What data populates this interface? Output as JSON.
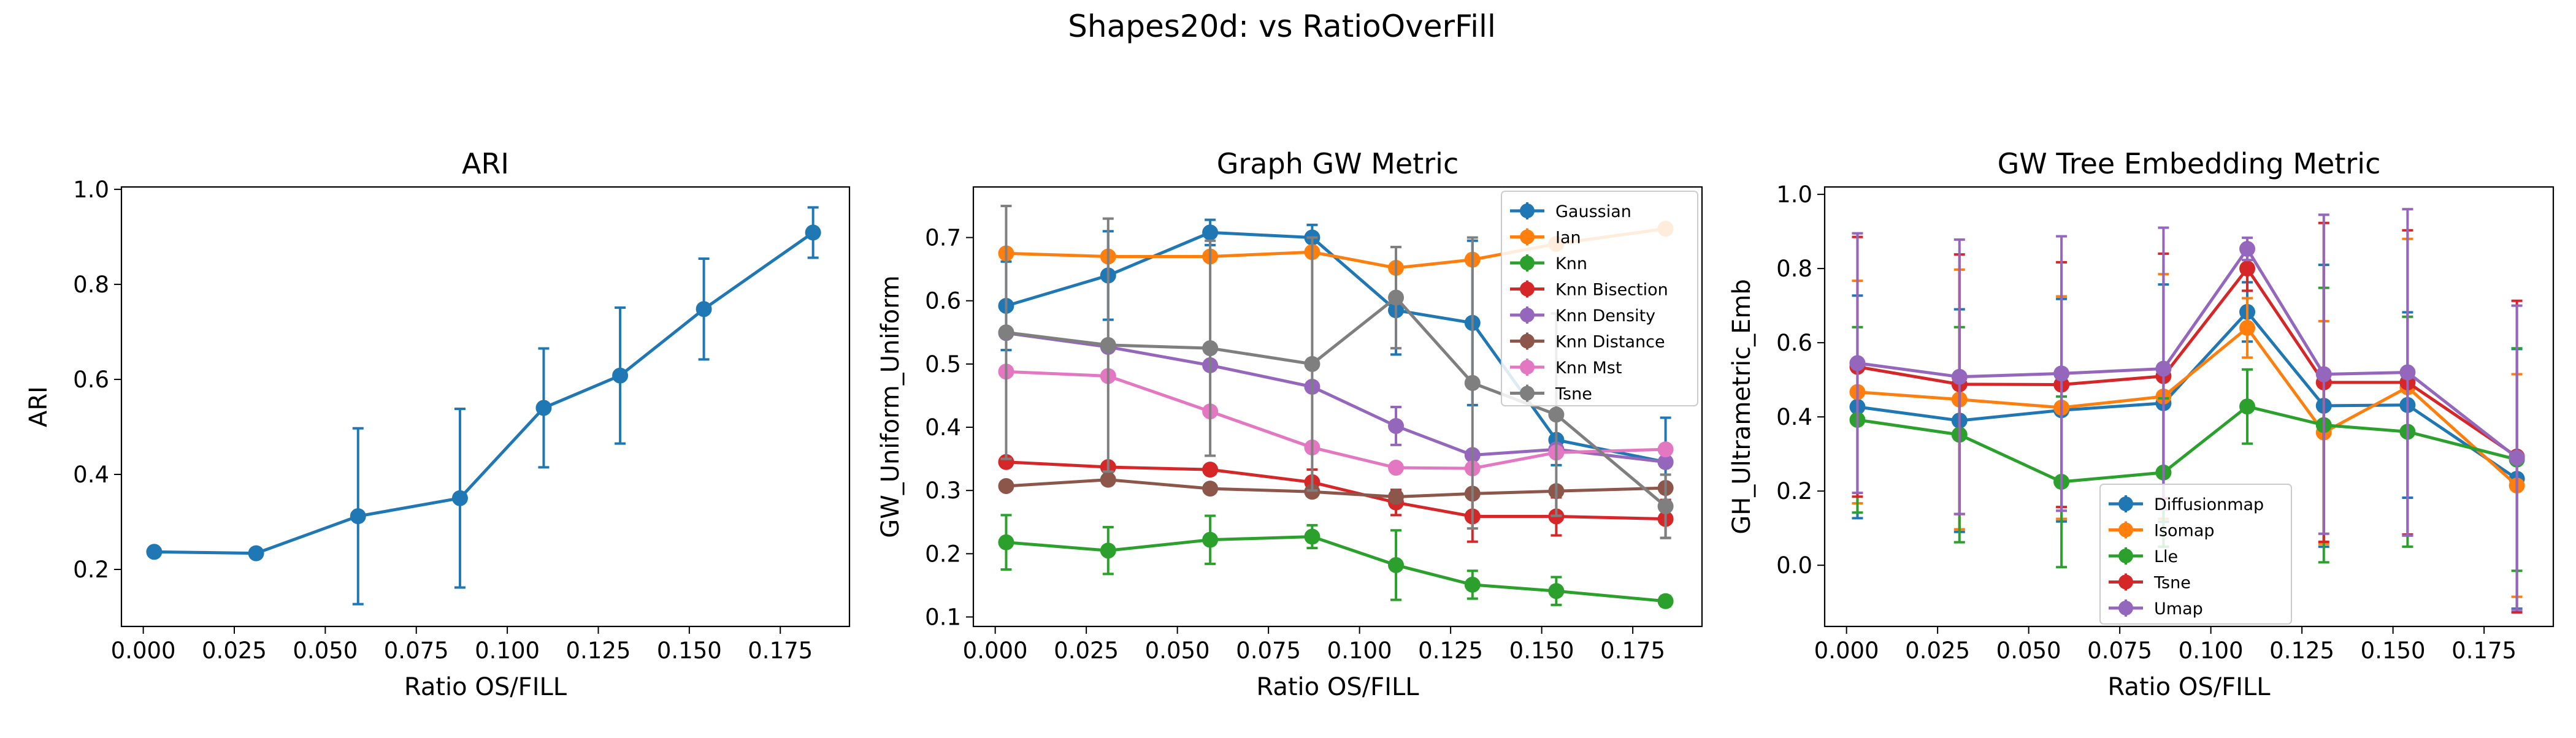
{
  "figure": {
    "suptitle": "Shapes20d: vs RatioOverFill"
  },
  "colors": {
    "tab_blue": "#1f77b4",
    "tab_orange": "#ff7f0e",
    "tab_green": "#2ca02c",
    "tab_red": "#d62728",
    "tab_purple": "#9467bd",
    "tab_brown": "#8c564b",
    "tab_pink": "#e377c2",
    "tab_gray": "#7f7f7f"
  },
  "chart_data": [
    {
      "type": "line",
      "title": "ARI",
      "xlabel": "Ratio OS/FILL",
      "ylabel": "ARI",
      "xlim": [
        -0.006,
        0.194
      ],
      "ylim": [
        0.08,
        1.005
      ],
      "xticks": [
        0.0,
        0.025,
        0.05,
        0.075,
        0.1,
        0.125,
        0.15,
        0.175
      ],
      "xtick_labels": [
        "0.000",
        "0.025",
        "0.050",
        "0.075",
        "0.100",
        "0.125",
        "0.150",
        "0.175"
      ],
      "yticks": [
        0.2,
        0.4,
        0.6,
        0.8,
        1.0
      ],
      "ytick_labels": [
        "0.2",
        "0.4",
        "0.6",
        "0.8",
        "1.0"
      ],
      "x": [
        0.003,
        0.031,
        0.059,
        0.087,
        0.11,
        0.131,
        0.154,
        0.184
      ],
      "series": [
        {
          "color": "#1f77b4",
          "values": [
            0.237,
            0.234,
            0.312,
            0.35,
            0.54,
            0.608,
            0.748,
            0.909
          ],
          "errors": [
            0.0,
            0.0,
            0.185,
            0.188,
            0.125,
            0.143,
            0.106,
            0.053
          ]
        }
      ]
    },
    {
      "type": "line",
      "title": "Graph GW Metric",
      "xlabel": "Ratio OS/FILL",
      "ylabel": "GW_Uniform_Uniform",
      "xlim": [
        -0.006,
        0.194
      ],
      "ylim": [
        0.085,
        0.78
      ],
      "xticks": [
        0.0,
        0.025,
        0.05,
        0.075,
        0.1,
        0.125,
        0.15,
        0.175
      ],
      "xtick_labels": [
        "0.000",
        "0.025",
        "0.050",
        "0.075",
        "0.100",
        "0.125",
        "0.150",
        "0.175"
      ],
      "yticks": [
        0.1,
        0.2,
        0.3,
        0.4,
        0.5,
        0.6,
        0.7
      ],
      "ytick_labels": [
        "0.1",
        "0.2",
        "0.3",
        "0.4",
        "0.5",
        "0.6",
        "0.7"
      ],
      "legend": "top-right",
      "x": [
        0.003,
        0.031,
        0.059,
        0.087,
        0.11,
        0.131,
        0.154,
        0.184
      ],
      "series": [
        {
          "name": "Gaussian",
          "color": "#1f77b4",
          "values": [
            0.592,
            0.64,
            0.708,
            0.7,
            0.585,
            0.565,
            0.38,
            0.345
          ],
          "errors": [
            0.07,
            0.07,
            0.02,
            0.02,
            0.07,
            0.13,
            0.04,
            0.07
          ]
        },
        {
          "name": "Ian",
          "color": "#ff7f0e",
          "values": [
            0.675,
            0.67,
            0.67,
            0.677,
            0.652,
            0.665,
            0.69,
            0.714
          ],
          "errors": [
            0.0,
            0.0,
            0.0,
            0.0,
            0.0,
            0.0,
            0.0,
            0.0
          ]
        },
        {
          "name": "Knn",
          "color": "#2ca02c",
          "values": [
            0.218,
            0.205,
            0.222,
            0.227,
            0.182,
            0.151,
            0.141,
            0.125
          ],
          "errors": [
            0.043,
            0.037,
            0.038,
            0.018,
            0.055,
            0.022,
            0.022,
            0.008
          ]
        },
        {
          "name": "Knn Bisection",
          "color": "#d62728",
          "values": [
            0.345,
            0.337,
            0.333,
            0.313,
            0.281,
            0.259,
            0.259,
            0.255
          ],
          "errors": [
            0.0,
            0.0,
            0.0,
            0.02,
            0.02,
            0.04,
            0.03,
            0.03
          ]
        },
        {
          "name": "Knn Density",
          "color": "#9467bd",
          "values": [
            0.549,
            0.527,
            0.498,
            0.464,
            0.402,
            0.356,
            0.365,
            0.345
          ],
          "errors": [
            0.0,
            0.0,
            0.0,
            0.0,
            0.03,
            0.0,
            0.0,
            0.0
          ]
        },
        {
          "name": "Knn Distance",
          "color": "#8c564b",
          "values": [
            0.307,
            0.317,
            0.303,
            0.298,
            0.29,
            0.295,
            0.299,
            0.304
          ],
          "errors": [
            0.0,
            0.0,
            0.0,
            0.0,
            0.0,
            0.0,
            0.0,
            0.0
          ]
        },
        {
          "name": "Knn Mst",
          "color": "#e377c2",
          "values": [
            0.488,
            0.481,
            0.425,
            0.368,
            0.336,
            0.335,
            0.36,
            0.365
          ],
          "errors": [
            0.0,
            0.0,
            0.0,
            0.0,
            0.0,
            0.0,
            0.0,
            0.0
          ]
        },
        {
          "name": "Tsne",
          "color": "#7f7f7f",
          "values": [
            0.55,
            0.53,
            0.525,
            0.5,
            0.605,
            0.47,
            0.42,
            0.275
          ],
          "errors": [
            0.2,
            0.2,
            0.17,
            0.2,
            0.08,
            0.23,
            0.16,
            0.05
          ]
        }
      ]
    },
    {
      "type": "line",
      "title": "GW Tree Embedding Metric",
      "xlabel": "Ratio OS/FILL",
      "ylabel": "GH_Ultrametric_Emb",
      "xlim": [
        -0.006,
        0.194
      ],
      "ylim": [
        -0.165,
        1.02
      ],
      "xticks": [
        0.0,
        0.025,
        0.05,
        0.075,
        0.1,
        0.125,
        0.15,
        0.175
      ],
      "xtick_labels": [
        "0.000",
        "0.025",
        "0.050",
        "0.075",
        "0.100",
        "0.125",
        "0.150",
        "0.175"
      ],
      "yticks": [
        0.0,
        0.2,
        0.4,
        0.6,
        0.8,
        1.0
      ],
      "ytick_labels": [
        "0.0",
        "0.2",
        "0.4",
        "0.6",
        "0.8",
        "1.0"
      ],
      "legend": "lower-center",
      "x": [
        0.003,
        0.031,
        0.059,
        0.087,
        0.11,
        0.131,
        0.154,
        0.184
      ],
      "series": [
        {
          "name": "Diffusionmap",
          "color": "#1f77b4",
          "values": [
            0.427,
            0.39,
            0.418,
            0.437,
            0.683,
            0.43,
            0.432,
            0.233
          ],
          "errors": [
            0.3,
            0.3,
            0.3,
            0.32,
            0.08,
            0.38,
            0.25,
            0.35
          ]
        },
        {
          "name": "Isomap",
          "color": "#ff7f0e",
          "values": [
            0.467,
            0.447,
            0.425,
            0.455,
            0.64,
            0.358,
            0.48,
            0.215
          ],
          "errors": [
            0.3,
            0.35,
            0.3,
            0.33,
            0.08,
            0.3,
            0.4,
            0.3
          ]
        },
        {
          "name": "Lle",
          "color": "#2ca02c",
          "values": [
            0.392,
            0.352,
            0.225,
            0.25,
            0.428,
            0.378,
            0.36,
            0.285
          ],
          "errors": [
            0.25,
            0.29,
            0.23,
            0.2,
            0.1,
            0.37,
            0.31,
            0.3
          ]
        },
        {
          "name": "Tsne",
          "color": "#d62728",
          "values": [
            0.535,
            0.488,
            0.487,
            0.51,
            0.8,
            0.493,
            0.493,
            0.293
          ],
          "errors": [
            0.35,
            0.35,
            0.33,
            0.33,
            0.06,
            0.43,
            0.41,
            0.42
          ]
        },
        {
          "name": "Umap",
          "color": "#9467bd",
          "values": [
            0.545,
            0.508,
            0.517,
            0.53,
            0.853,
            0.515,
            0.52,
            0.29
          ],
          "errors": [
            0.35,
            0.37,
            0.37,
            0.38,
            0.03,
            0.43,
            0.44,
            0.41
          ]
        }
      ]
    }
  ]
}
